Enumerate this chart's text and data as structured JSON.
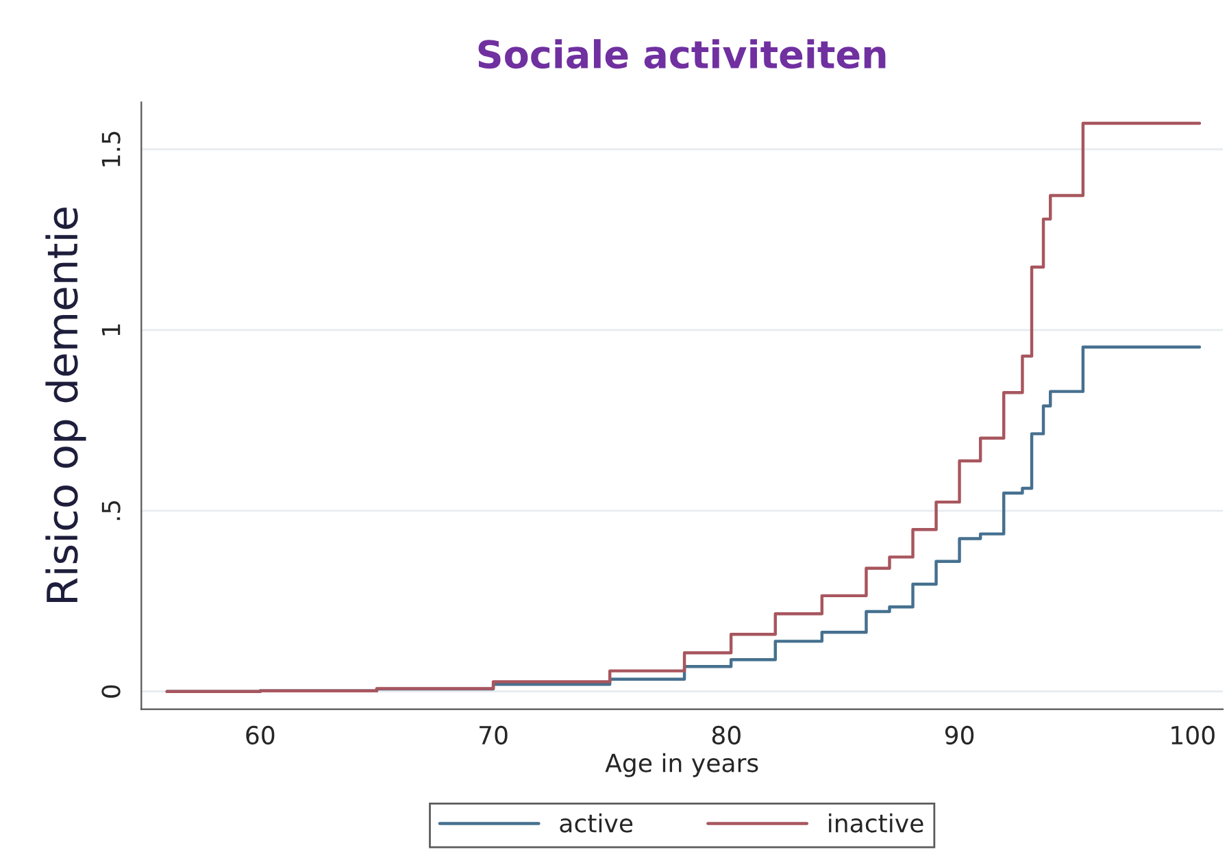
{
  "chart_data": {
    "type": "step",
    "title": "Sociale activiteiten",
    "xlabel": "Age in years",
    "ylabel": "Risico op dementie",
    "xlim": [
      54.9,
      101.3
    ],
    "xticks": [
      60,
      70,
      80,
      90,
      100
    ],
    "ylim": [
      -0.049,
      1.63
    ],
    "yticks": [
      0,
      {
        "value": 0.5,
        "label": ".5"
      },
      1,
      1.5
    ],
    "grid": "y",
    "legend": "bottom",
    "series": [
      {
        "name": "active",
        "color": "#46708f",
        "x": [
          56,
          60,
          65,
          70,
          75,
          78.2,
          80.2,
          82.1,
          84.1,
          86.0,
          87.0,
          88.0,
          89.0,
          90.0,
          90.9,
          91.9,
          92.7,
          93.1,
          93.6,
          93.9,
          95.3,
          100.3
        ],
        "values": [
          0,
          0.002,
          0.007,
          0.02,
          0.034,
          0.069,
          0.088,
          0.139,
          0.164,
          0.221,
          0.234,
          0.297,
          0.36,
          0.423,
          0.436,
          0.549,
          0.562,
          0.713,
          0.79,
          0.83,
          0.953,
          0.953
        ]
      },
      {
        "name": "inactive",
        "color": "#a8565e",
        "x": [
          56,
          60,
          65,
          70,
          75,
          78.2,
          80.2,
          82.1,
          84.1,
          86.0,
          87.0,
          88.0,
          89.0,
          90.0,
          90.9,
          91.9,
          92.7,
          93.1,
          93.6,
          93.9,
          95.3,
          100.3
        ],
        "values": [
          0,
          0.002,
          0.008,
          0.027,
          0.057,
          0.107,
          0.158,
          0.215,
          0.265,
          0.341,
          0.372,
          0.448,
          0.524,
          0.638,
          0.701,
          0.827,
          0.928,
          1.174,
          1.307,
          1.372,
          1.572,
          1.572
        ]
      }
    ]
  }
}
